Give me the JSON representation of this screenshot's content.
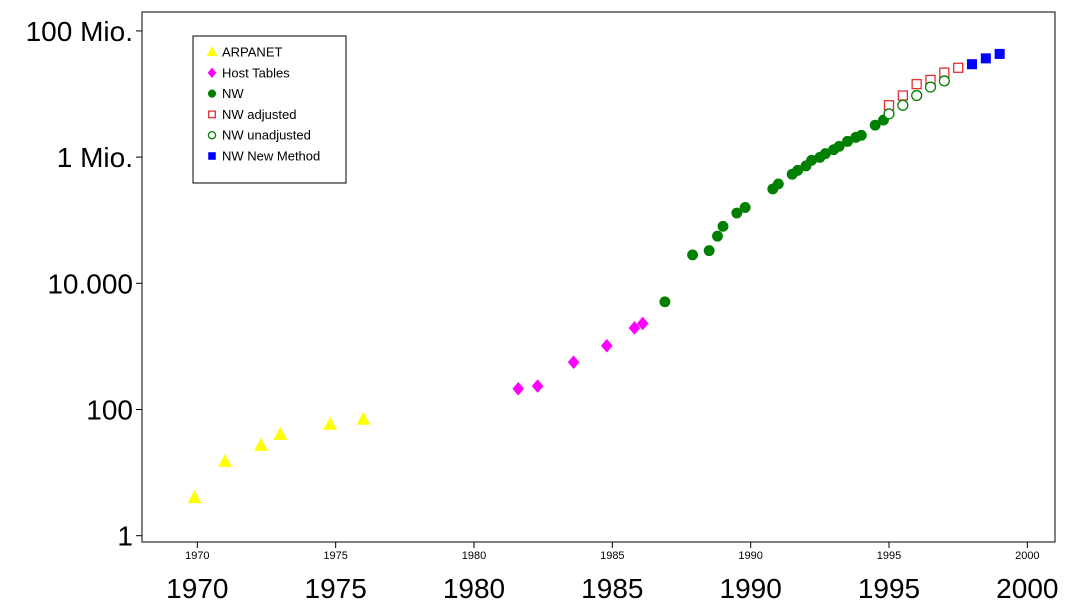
{
  "chart_data": {
    "type": "scatter",
    "title": "",
    "xlabel": "",
    "ylabel": "",
    "y_scale": "log",
    "xlim": [
      1968,
      2001
    ],
    "ylim_log10": [
      -0.1,
      8.3
    ],
    "grid": false,
    "legend_position": "top-left",
    "x_ticks_small": [
      "1970",
      "1975",
      "1980",
      "1985",
      "1990",
      "1995",
      "2000"
    ],
    "x_ticks_large": [
      "1970",
      "1975",
      "1980",
      "1985",
      "1990",
      "1995",
      "2000"
    ],
    "x_tick_values": [
      1970,
      1975,
      1980,
      1985,
      1990,
      1995,
      2000
    ],
    "y_tick_values": [
      1,
      100,
      10000,
      1000000,
      100000000
    ],
    "y_tick_labels": [
      "1",
      "100",
      "10.000",
      "1 Mio.",
      "100 Mio."
    ],
    "series": [
      {
        "name": "ARPANET",
        "marker": "triangle",
        "filled": true,
        "color": "#ffff00",
        "points": [
          [
            1969.9,
            4
          ],
          [
            1971.0,
            15
          ],
          [
            1972.3,
            27
          ],
          [
            1973.0,
            40
          ],
          [
            1974.8,
            58
          ],
          [
            1976.0,
            70
          ]
        ]
      },
      {
        "name": "Host Tables",
        "marker": "diamond",
        "filled": true,
        "color": "#ff00ff",
        "points": [
          [
            1981.6,
            213
          ],
          [
            1982.3,
            235
          ],
          [
            1983.6,
            562
          ],
          [
            1984.8,
            1024
          ],
          [
            1985.8,
            1961
          ],
          [
            1986.1,
            2308
          ]
        ]
      },
      {
        "name": "NW",
        "marker": "circle",
        "filled": true,
        "color": "#008000",
        "points": [
          [
            1986.9,
            5089
          ],
          [
            1987.9,
            28174
          ],
          [
            1988.5,
            33000
          ],
          [
            1988.8,
            56000
          ],
          [
            1989.0,
            80000
          ],
          [
            1989.5,
            130000
          ],
          [
            1989.8,
            159000
          ],
          [
            1990.8,
            313000
          ],
          [
            1991.0,
            376000
          ],
          [
            1991.5,
            535000
          ],
          [
            1991.7,
            617000
          ],
          [
            1992.0,
            727000
          ],
          [
            1992.2,
            890000
          ],
          [
            1992.5,
            992000
          ],
          [
            1992.7,
            1136000
          ],
          [
            1993.0,
            1313000
          ],
          [
            1993.2,
            1486000
          ],
          [
            1993.5,
            1776000
          ],
          [
            1993.8,
            2056000
          ],
          [
            1994.0,
            2217000
          ],
          [
            1994.5,
            3212000
          ],
          [
            1994.8,
            3864000
          ]
        ]
      },
      {
        "name": "NW adjusted",
        "marker": "square",
        "filled": false,
        "color": "#e03030",
        "points": [
          [
            1995.0,
            6642000
          ],
          [
            1995.5,
            9472000
          ],
          [
            1996.0,
            14352000
          ],
          [
            1996.5,
            16729000
          ],
          [
            1997.0,
            21819000
          ],
          [
            1997.5,
            26053000
          ]
        ]
      },
      {
        "name": "NW unadjusted",
        "marker": "circle",
        "filled": false,
        "color": "#008000",
        "points": [
          [
            1995.0,
            4852000
          ],
          [
            1995.5,
            6642000
          ],
          [
            1996.0,
            9472000
          ],
          [
            1996.5,
            12881000
          ],
          [
            1997.0,
            16146000
          ]
        ]
      },
      {
        "name": "NW New Method",
        "marker": "square",
        "filled": true,
        "color": "#0000ff",
        "points": [
          [
            1998.0,
            29670000
          ],
          [
            1998.5,
            36739000
          ],
          [
            1999.0,
            43230000
          ]
        ]
      }
    ]
  }
}
